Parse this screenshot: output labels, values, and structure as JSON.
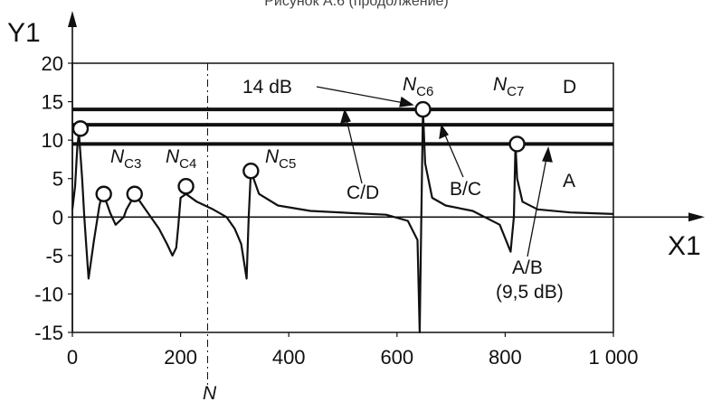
{
  "caption": "Рисунок А.6 (продолжение)",
  "chart_data": {
    "type": "line",
    "ylabel": "Y1",
    "xlabel": "X1",
    "x_marker_label": "N",
    "x_marker_value": 250,
    "xlim": [
      0,
      1000
    ],
    "ylim": [
      -15,
      20
    ],
    "x_ticks": [
      {
        "value": 0,
        "label": "0"
      },
      {
        "value": 200,
        "label": "200"
      },
      {
        "value": 400,
        "label": "400"
      },
      {
        "value": 600,
        "label": "600"
      },
      {
        "value": 800,
        "label": "800"
      },
      {
        "value": 1000,
        "label": "1 000"
      }
    ],
    "y_ticks": [
      {
        "value": 20,
        "label": "20"
      },
      {
        "value": 15,
        "label": "15"
      },
      {
        "value": 10,
        "label": "10"
      },
      {
        "value": 5,
        "label": "5"
      },
      {
        "value": 0,
        "label": "0"
      },
      {
        "value": -5,
        "label": "-5"
      },
      {
        "value": -10,
        "label": "-10"
      },
      {
        "value": -15,
        "label": "-15"
      }
    ],
    "limit_lines": [
      {
        "id": "C/D",
        "y": 14
      },
      {
        "id": "B/C",
        "y": 12
      },
      {
        "id": "A/B",
        "y": 9.5
      }
    ],
    "series": [
      {
        "x": [
          0,
          5,
          9,
          12,
          15,
          18,
          22,
          26,
          30,
          40,
          50,
          55,
          60,
          65,
          70,
          80,
          95,
          100,
          108,
          115,
          125,
          140,
          160,
          175,
          185,
          192,
          196,
          200,
          210,
          230,
          260,
          285,
          300,
          312,
          322,
          326,
          330,
          345,
          380,
          440,
          520,
          580,
          620,
          638,
          642,
          645,
          648,
          652,
          665,
          690,
          740,
          790,
          810,
          816,
          819,
          822,
          832,
          860,
          920,
          1000
        ],
        "y": [
          1,
          4,
          9,
          11,
          8,
          5,
          0,
          -4,
          -8,
          -3,
          1.5,
          3,
          2.5,
          1.5,
          0.5,
          -1,
          0,
          1,
          2,
          3,
          2,
          0.5,
          -1.5,
          -3.5,
          -5,
          -4,
          -1,
          2.5,
          3,
          2,
          1,
          0,
          -1.5,
          -3.5,
          -8,
          0,
          6,
          3,
          1.5,
          0.8,
          0.5,
          0.3,
          -0.5,
          -3,
          -15,
          0,
          14,
          7,
          2.5,
          1.5,
          0.8,
          -1,
          -4.5,
          0,
          9.5,
          5,
          2,
          1,
          0.6,
          0.4
        ]
      }
    ],
    "circle_markers": [
      {
        "x": 15,
        "y": 11.5
      },
      {
        "x": 58,
        "y": 3
      },
      {
        "x": 115,
        "y": 3
      },
      {
        "x": 210,
        "y": 4
      },
      {
        "x": 330,
        "y": 6
      },
      {
        "x": 648,
        "y": 14
      },
      {
        "x": 822,
        "y": 9.5
      }
    ],
    "annotations": {
      "nc3": {
        "main": "N",
        "sub": "C3"
      },
      "nc4": {
        "main": "N",
        "sub": "C4"
      },
      "nc5": {
        "main": "N",
        "sub": "C5"
      },
      "nc6": {
        "main": "N",
        "sub": "C6"
      },
      "nc7": {
        "main": "N",
        "sub": "C7"
      },
      "zone_d": "D",
      "zone_a": "A",
      "label_14db": "14 dB",
      "label_cd": "C/D",
      "label_bc": "B/C",
      "label_ab": "A/B",
      "label_ab_db": "(9,5 dB)"
    }
  }
}
